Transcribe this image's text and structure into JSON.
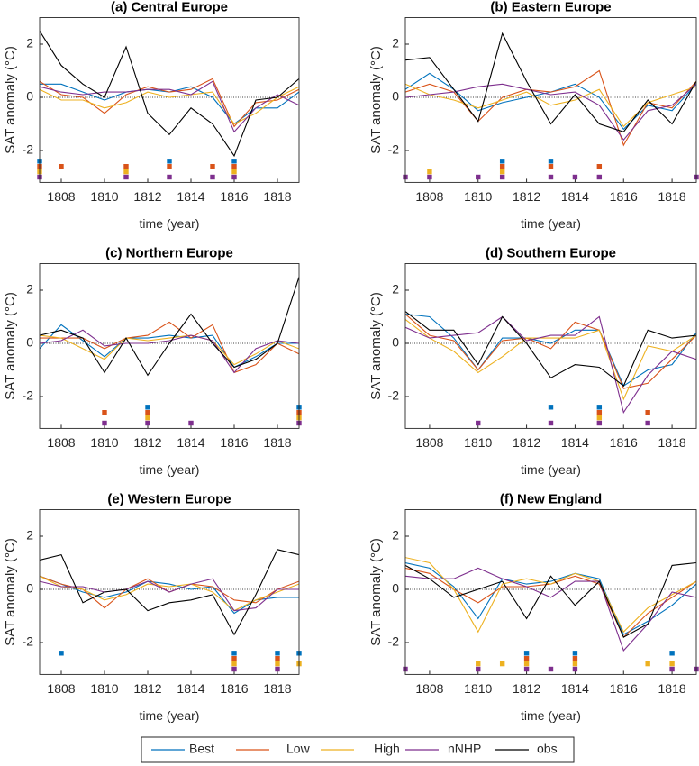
{
  "chart_data": [
    {
      "type": "line",
      "title": "(a) Central Europe",
      "xlabel": "time (year)",
      "ylabel": "SAT anomaly (°C)",
      "x": [
        1807,
        1808,
        1809,
        1810,
        1811,
        1812,
        1813,
        1814,
        1815,
        1816,
        1817,
        1818,
        1819
      ],
      "xlim": [
        1807,
        1819
      ],
      "xticks": [
        1808,
        1810,
        1812,
        1814,
        1816,
        1818
      ],
      "ylim": [
        -3.2,
        3
      ],
      "yticks": [
        -2,
        0,
        2
      ],
      "hline": 0,
      "series": [
        {
          "name": "Best",
          "color": "#0072bd",
          "values": [
            0.5,
            0.5,
            0.2,
            -0.1,
            0.2,
            0.3,
            0.2,
            0.4,
            0.0,
            -1.0,
            -0.4,
            -0.4,
            0.2
          ],
          "markers": [
            1807,
            1813,
            1816
          ],
          "marker_y": -2.4
        },
        {
          "name": "Low",
          "color": "#d95319",
          "values": [
            0.6,
            0.1,
            0.0,
            -0.6,
            0.1,
            0.4,
            0.2,
            0.3,
            0.7,
            -1.1,
            -0.2,
            -0.1,
            0.3
          ],
          "markers": [
            1807,
            1808,
            1811,
            1813,
            1815,
            1816
          ],
          "marker_y": -2.6
        },
        {
          "name": "High",
          "color": "#edb120",
          "values": [
            0.3,
            -0.1,
            -0.1,
            -0.4,
            -0.2,
            0.2,
            0.0,
            0.1,
            0.2,
            -1.0,
            -0.6,
            0.0,
            0.4
          ],
          "markers": [
            1807,
            1811,
            1816
          ],
          "marker_y": -2.8
        },
        {
          "name": "nNHP",
          "color": "#7e2f8e",
          "values": [
            0.4,
            0.2,
            0.1,
            0.2,
            0.2,
            0.3,
            0.3,
            0.1,
            0.6,
            -1.3,
            -0.4,
            0.1,
            -0.3
          ],
          "markers": [
            1807,
            1811,
            1813,
            1815,
            1816
          ],
          "marker_y": -3.0
        },
        {
          "name": "obs",
          "color": "#000000",
          "values": [
            2.5,
            1.2,
            0.5,
            0.0,
            1.9,
            -0.6,
            -1.4,
            -0.4,
            -1.0,
            -2.2,
            -0.1,
            0.0,
            0.7
          ]
        }
      ]
    },
    {
      "type": "line",
      "title": "(b) Eastern Europe",
      "xlabel": "time (year)",
      "ylabel": "SAT anomaly (°C)",
      "x": [
        1807,
        1808,
        1809,
        1810,
        1811,
        1812,
        1813,
        1814,
        1815,
        1816,
        1817,
        1818,
        1819
      ],
      "xlim": [
        1807,
        1819
      ],
      "xticks": [
        1808,
        1810,
        1812,
        1814,
        1816,
        1818
      ],
      "ylim": [
        -3.2,
        3
      ],
      "yticks": [
        -2,
        0,
        2
      ],
      "hline": 0,
      "series": [
        {
          "name": "Best",
          "color": "#0072bd",
          "values": [
            0.3,
            0.9,
            0.3,
            -0.5,
            -0.2,
            0.0,
            0.2,
            0.5,
            0.0,
            -1.2,
            -0.3,
            -0.5,
            0.5
          ],
          "markers": [
            1811,
            1813
          ],
          "marker_y": -2.4
        },
        {
          "name": "Low",
          "color": "#d95319",
          "values": [
            0.2,
            0.5,
            0.2,
            -0.9,
            0.0,
            0.3,
            0.2,
            0.4,
            1.0,
            -1.8,
            -0.2,
            -0.4,
            0.6
          ],
          "markers": [
            1811,
            1813,
            1815
          ],
          "marker_y": -2.6
        },
        {
          "name": "High",
          "color": "#edb120",
          "values": [
            0.5,
            0.1,
            -0.1,
            -0.4,
            -0.1,
            0.2,
            -0.3,
            -0.1,
            0.3,
            -1.1,
            -0.2,
            0.1,
            0.4
          ],
          "markers": [
            1808,
            1811
          ],
          "marker_y": -2.8
        },
        {
          "name": "nNHP",
          "color": "#7e2f8e",
          "values": [
            0.0,
            0.1,
            0.2,
            0.4,
            0.5,
            0.3,
            0.1,
            0.2,
            -0.3,
            -1.6,
            -0.5,
            -0.3,
            0.5
          ],
          "markers": [
            1807,
            1808,
            1810,
            1811,
            1813,
            1814,
            1815,
            1819
          ],
          "marker_y": -3.0
        },
        {
          "name": "obs",
          "color": "#000000",
          "values": [
            1.4,
            1.5,
            0.3,
            -0.9,
            2.4,
            0.6,
            -1.0,
            0.1,
            -1.0,
            -1.3,
            -0.1,
            -1.0,
            0.6
          ]
        }
      ]
    },
    {
      "type": "line",
      "title": "(c) Northern Europe",
      "xlabel": "time (year)",
      "ylabel": "SAT anomaly (°C)",
      "x": [
        1807,
        1808,
        1809,
        1810,
        1811,
        1812,
        1813,
        1814,
        1815,
        1816,
        1817,
        1818,
        1819
      ],
      "xlim": [
        1807,
        1819
      ],
      "xticks": [
        1808,
        1810,
        1812,
        1814,
        1816,
        1818
      ],
      "ylim": [
        -3.2,
        3
      ],
      "yticks": [
        -2,
        0,
        2
      ],
      "hline": 0,
      "series": [
        {
          "name": "Best",
          "color": "#0072bd",
          "values": [
            -0.2,
            0.7,
            0.1,
            -0.5,
            0.2,
            0.2,
            0.3,
            0.2,
            0.3,
            -0.9,
            -0.5,
            0.0,
            0.0
          ],
          "markers": [
            1812,
            1819
          ],
          "marker_y": -2.4
        },
        {
          "name": "Low",
          "color": "#d95319",
          "values": [
            0.2,
            0.2,
            0.2,
            -0.2,
            0.2,
            0.3,
            0.8,
            0.2,
            0.7,
            -1.1,
            -0.8,
            0.0,
            -0.4
          ],
          "markers": [
            1810,
            1812,
            1819
          ],
          "marker_y": -2.6
        },
        {
          "name": "High",
          "color": "#edb120",
          "values": [
            0.3,
            0.2,
            -0.2,
            -0.6,
            0.2,
            0.1,
            0.2,
            0.3,
            0.1,
            -0.8,
            -0.4,
            0.1,
            -0.2
          ],
          "markers": [
            1812,
            1819
          ],
          "marker_y": -2.8
        },
        {
          "name": "nNHP",
          "color": "#7e2f8e",
          "values": [
            0.0,
            0.1,
            0.5,
            -0.1,
            0.0,
            0.0,
            0.1,
            0.3,
            0.1,
            -1.1,
            -0.2,
            0.1,
            0.0
          ],
          "markers": [
            1810,
            1812,
            1814,
            1819
          ],
          "marker_y": -3.0
        },
        {
          "name": "obs",
          "color": "#000000",
          "values": [
            0.3,
            0.5,
            0.2,
            -1.1,
            0.2,
            -1.2,
            0.0,
            1.1,
            0.0,
            -0.9,
            -0.6,
            0.0,
            2.5
          ]
        }
      ]
    },
    {
      "type": "line",
      "title": "(d) Southern Europe",
      "xlabel": "time (year)",
      "ylabel": "SAT anomaly (°C)",
      "x": [
        1807,
        1808,
        1809,
        1810,
        1811,
        1812,
        1813,
        1814,
        1815,
        1816,
        1817,
        1818,
        1819
      ],
      "xlim": [
        1807,
        1819
      ],
      "xticks": [
        1808,
        1810,
        1812,
        1814,
        1816,
        1818
      ],
      "ylim": [
        -3.2,
        3
      ],
      "yticks": [
        -2,
        0,
        2
      ],
      "hline": 0,
      "series": [
        {
          "name": "Best",
          "color": "#0072bd",
          "values": [
            1.1,
            1.0,
            0.2,
            -1.0,
            0.2,
            0.2,
            0.0,
            0.5,
            0.5,
            -1.6,
            -1.0,
            -0.8,
            0.4
          ],
          "markers": [
            1813,
            1815
          ],
          "marker_y": -2.4
        },
        {
          "name": "Low",
          "color": "#d95319",
          "values": [
            1.1,
            0.3,
            0.1,
            -1.0,
            0.1,
            0.2,
            -0.2,
            0.8,
            0.5,
            -1.7,
            -1.5,
            -0.6,
            0.3
          ],
          "markers": [
            1815,
            1817
          ],
          "marker_y": -2.6
        },
        {
          "name": "High",
          "color": "#edb120",
          "values": [
            0.9,
            0.2,
            -0.3,
            -1.1,
            -0.5,
            0.2,
            0.2,
            0.2,
            0.5,
            -2.1,
            -0.1,
            -0.3,
            0.3
          ],
          "markers": [
            1815
          ],
          "marker_y": -2.8
        },
        {
          "name": "nNHP",
          "color": "#7e2f8e",
          "values": [
            0.6,
            0.2,
            0.3,
            0.4,
            1.0,
            0.1,
            0.3,
            0.3,
            1.0,
            -2.6,
            -1.2,
            -0.3,
            -0.6
          ],
          "markers": [
            1810,
            1813,
            1815,
            1817
          ],
          "marker_y": -3.0
        },
        {
          "name": "obs",
          "color": "#000000",
          "values": [
            1.2,
            0.5,
            0.5,
            -0.8,
            1.0,
            0.0,
            -1.3,
            -0.8,
            -0.9,
            -1.6,
            0.5,
            0.2,
            0.3
          ]
        }
      ]
    },
    {
      "type": "line",
      "title": "(e) Western Europe",
      "xlabel": "time (year)",
      "ylabel": "SAT anomaly (°C)",
      "x": [
        1807,
        1808,
        1809,
        1810,
        1811,
        1812,
        1813,
        1814,
        1815,
        1816,
        1817,
        1818,
        1819
      ],
      "xlim": [
        1807,
        1819
      ],
      "xticks": [
        1808,
        1810,
        1812,
        1814,
        1816,
        1818
      ],
      "ylim": [
        -3.2,
        3
      ],
      "yticks": [
        -2,
        0,
        2
      ],
      "hline": 0,
      "series": [
        {
          "name": "Best",
          "color": "#0072bd",
          "values": [
            0.5,
            0.2,
            -0.1,
            -0.3,
            -0.1,
            0.3,
            0.2,
            0.0,
            0.1,
            -0.9,
            -0.4,
            -0.3,
            -0.3
          ],
          "markers": [
            1808,
            1816,
            1818,
            1819
          ],
          "marker_y": -2.4
        },
        {
          "name": "Low",
          "color": "#d95319",
          "values": [
            0.5,
            0.2,
            0.0,
            -0.7,
            0.0,
            0.4,
            -0.1,
            0.2,
            0.1,
            -0.4,
            -0.5,
            0.0,
            0.3
          ],
          "markers": [
            1816,
            1818
          ],
          "marker_y": -2.6
        },
        {
          "name": "High",
          "color": "#edb120",
          "values": [
            0.5,
            0.1,
            0.0,
            -0.4,
            -0.2,
            0.2,
            0.1,
            0.2,
            -0.1,
            -0.8,
            -0.4,
            -0.1,
            0.2
          ],
          "markers": [
            1816,
            1818,
            1819
          ],
          "marker_y": -2.8
        },
        {
          "name": "nNHP",
          "color": "#7e2f8e",
          "values": [
            0.3,
            0.1,
            0.1,
            -0.1,
            0.0,
            0.3,
            -0.1,
            0.2,
            0.4,
            -0.8,
            -0.7,
            0.0,
            0.0
          ],
          "markers": [
            1816,
            1818
          ],
          "marker_y": -3.0
        },
        {
          "name": "obs",
          "color": "#000000",
          "values": [
            1.1,
            1.3,
            -0.5,
            -0.1,
            0.0,
            -0.8,
            -0.5,
            -0.4,
            -0.2,
            -1.7,
            -0.2,
            1.5,
            1.3
          ]
        }
      ]
    },
    {
      "type": "line",
      "title": "(f) New England",
      "xlabel": "time (year)",
      "ylabel": "SAT anomaly (°C)",
      "x": [
        1807,
        1808,
        1809,
        1810,
        1811,
        1812,
        1813,
        1814,
        1815,
        1816,
        1817,
        1818,
        1819
      ],
      "xlim": [
        1807,
        1819
      ],
      "xticks": [
        1808,
        1810,
        1812,
        1814,
        1816,
        1818
      ],
      "ylim": [
        -3.2,
        3
      ],
      "yticks": [
        -2,
        0,
        2
      ],
      "hline": 0,
      "series": [
        {
          "name": "Best",
          "color": "#0072bd",
          "values": [
            1.0,
            0.8,
            0.1,
            -1.1,
            0.4,
            0.2,
            0.3,
            0.6,
            0.4,
            -1.7,
            -1.2,
            -0.6,
            0.2
          ],
          "markers": [
            1812,
            1814,
            1818
          ],
          "marker_y": -2.4
        },
        {
          "name": "Low",
          "color": "#d95319",
          "values": [
            0.8,
            0.6,
            0.0,
            -0.5,
            0.1,
            0.1,
            0.2,
            0.5,
            0.2,
            -1.8,
            -0.9,
            -0.3,
            0.3
          ],
          "markers": [
            1812,
            1814
          ],
          "marker_y": -2.6
        },
        {
          "name": "High",
          "color": "#edb120",
          "values": [
            1.2,
            1.0,
            0.0,
            -1.6,
            0.2,
            0.4,
            0.2,
            0.6,
            0.3,
            -1.6,
            -0.7,
            -0.2,
            0.3
          ],
          "markers": [
            1810,
            1811,
            1812,
            1814,
            1817,
            1818
          ],
          "marker_y": -2.8
        },
        {
          "name": "nNHP",
          "color": "#7e2f8e",
          "values": [
            0.5,
            0.4,
            0.4,
            0.8,
            0.4,
            0.1,
            -0.3,
            0.3,
            0.3,
            -2.3,
            -1.3,
            -0.1,
            -0.3
          ],
          "markers": [
            1807,
            1810,
            1812,
            1813,
            1814,
            1818,
            1819
          ],
          "marker_y": -3.0
        },
        {
          "name": "obs",
          "color": "#000000",
          "values": [
            0.9,
            0.4,
            -0.3,
            0.0,
            0.3,
            -1.1,
            0.5,
            -0.6,
            0.3,
            -1.8,
            -1.3,
            0.9,
            1.0
          ]
        }
      ]
    }
  ]
}
